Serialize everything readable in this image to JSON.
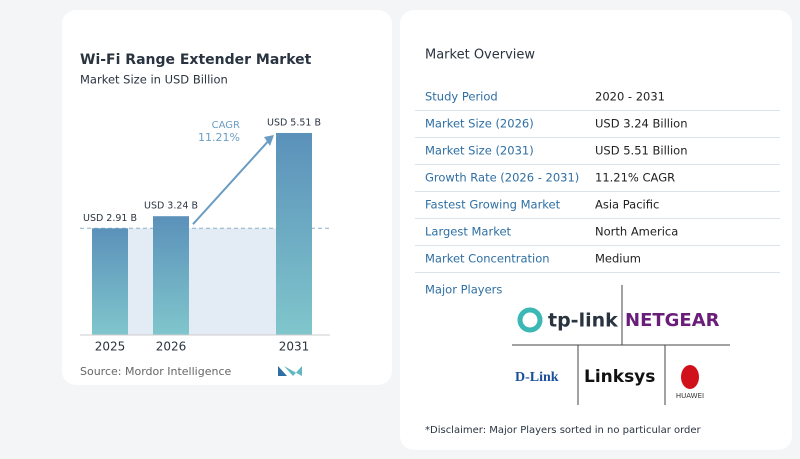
{
  "chart_data": {
    "type": "bar",
    "title": "Wi-Fi Range Extender Market",
    "subtitle": "Market Size in USD Billion",
    "categories": [
      "2025",
      "2026",
      "2031"
    ],
    "values": [
      2.91,
      3.24,
      5.51
    ],
    "value_labels": [
      "USD 2.91 B",
      "USD 3.24 B",
      "USD 5.51 B"
    ],
    "color": "#5b91ba",
    "ylim": [
      0,
      6
    ],
    "cagr_label": "CAGR",
    "cagr_value": "11.21%",
    "source": "Source:  Mordor Intelligence"
  },
  "overview": {
    "title": "Market Overview",
    "rows": [
      [
        "Study Period",
        "2020 - 2031"
      ],
      [
        "Market Size (2026)",
        "USD 3.24 Billion"
      ],
      [
        "Market Size (2031)",
        "USD 5.51 Billion"
      ],
      [
        "Growth Rate (2026 - 2031)",
        "11.21% CAGR"
      ],
      [
        "Fastest Growing Market",
        "Asia Pacific"
      ],
      [
        "Largest Market",
        "North America"
      ],
      [
        "Market Concentration",
        "Medium"
      ]
    ]
  },
  "players": {
    "title": "Major Players",
    "logos": [
      "tp-link",
      "NETGEAR",
      "D-Link",
      "Linksys",
      "HUAWEI"
    ]
  },
  "disclaimer": "*Disclaimer: Major Players sorted in no particular order"
}
